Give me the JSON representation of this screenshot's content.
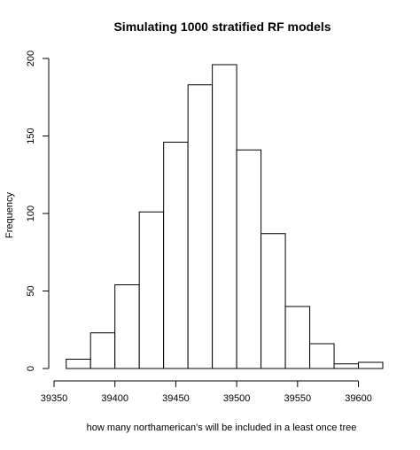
{
  "chart_data": {
    "type": "bar",
    "title": "Simulating 1000 stratified RF models",
    "xlabel": "how many northamerican's will be included in a least once tree",
    "ylabel": "Frequency",
    "bins": [
      {
        "from": 39360,
        "to": 39380,
        "count": 6
      },
      {
        "from": 39380,
        "to": 39400,
        "count": 23
      },
      {
        "from": 39400,
        "to": 39420,
        "count": 54
      },
      {
        "from": 39420,
        "to": 39440,
        "count": 101
      },
      {
        "from": 39440,
        "to": 39460,
        "count": 146
      },
      {
        "from": 39460,
        "to": 39480,
        "count": 183
      },
      {
        "from": 39480,
        "to": 39500,
        "count": 196
      },
      {
        "from": 39500,
        "to": 39520,
        "count": 141
      },
      {
        "from": 39520,
        "to": 39540,
        "count": 87
      },
      {
        "from": 39540,
        "to": 39560,
        "count": 40
      },
      {
        "from": 39560,
        "to": 39580,
        "count": 16
      },
      {
        "from": 39580,
        "to": 39600,
        "count": 3
      },
      {
        "from": 39600,
        "to": 39620,
        "count": 4
      }
    ],
    "xlim": [
      39350,
      39620
    ],
    "ylim": [
      0,
      200
    ],
    "x_ticks": [
      "39350",
      "39400",
      "39450",
      "39500",
      "39550",
      "39600"
    ],
    "y_ticks": [
      "0",
      "50",
      "100",
      "150",
      "200"
    ],
    "grid": false,
    "legend": "none"
  }
}
